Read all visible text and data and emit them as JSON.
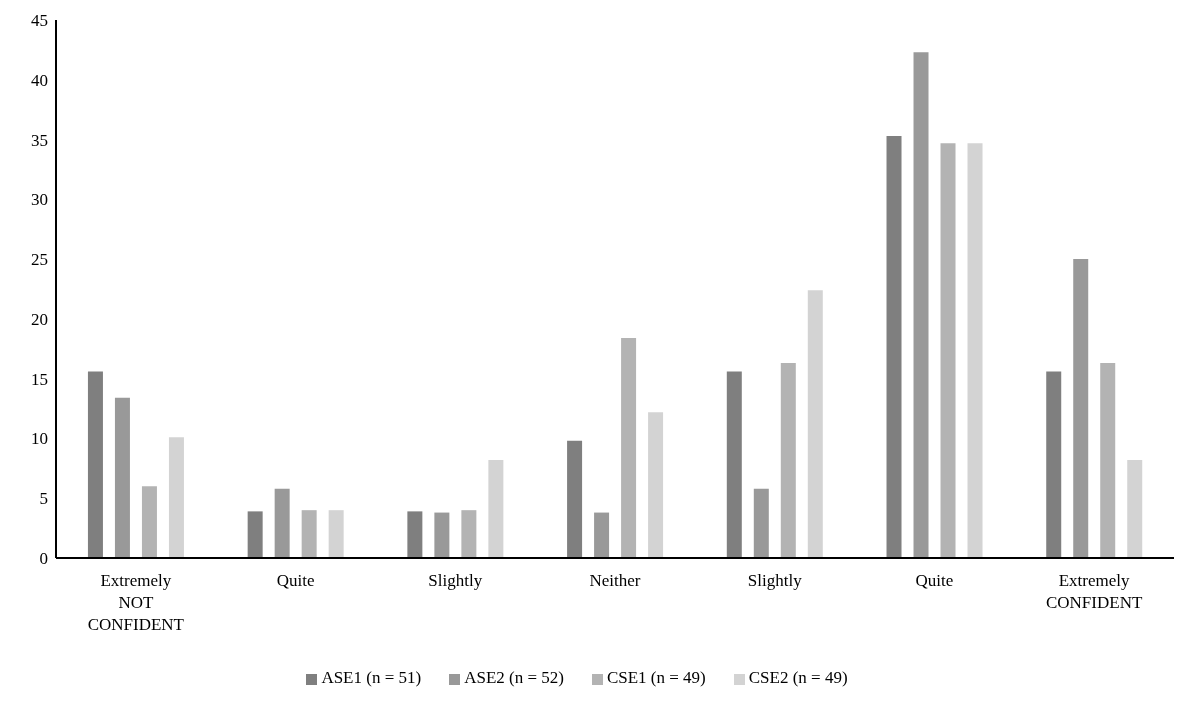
{
  "chart_data": {
    "type": "bar",
    "categories": [
      "Extremely NOT CONFIDENT",
      "Quite",
      "Slightly",
      "Neither",
      "Slightly",
      "Quite",
      "Extremely CONFIDENT"
    ],
    "series": [
      {
        "name": "ASE1 (n = 51)",
        "color": "#7f7f7f",
        "values": [
          15.6,
          3.9,
          3.9,
          9.8,
          15.6,
          35.3,
          15.6
        ]
      },
      {
        "name": "ASE2 (n = 52)",
        "color": "#999999",
        "values": [
          13.4,
          5.8,
          3.8,
          3.8,
          5.8,
          42.3,
          25.0
        ]
      },
      {
        "name": "CSE1 (n = 49)",
        "color": "#b3b3b3",
        "values": [
          6.0,
          4.0,
          4.0,
          18.4,
          16.3,
          34.7,
          16.3
        ]
      },
      {
        "name": "CSE2 (n = 49)",
        "color": "#d3d3d3",
        "values": [
          10.1,
          4.0,
          8.2,
          12.2,
          22.4,
          34.7,
          8.2
        ]
      }
    ],
    "ylim": [
      0,
      45
    ],
    "yticks": [
      0,
      5,
      10,
      15,
      20,
      25,
      30,
      35,
      40,
      45
    ],
    "grid": false,
    "legend": "bottom"
  }
}
